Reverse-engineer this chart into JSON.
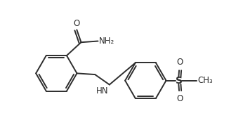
{
  "bg_color": "#ffffff",
  "line_color": "#2d2d2d",
  "line_width": 1.4,
  "font_size": 8.5,
  "figsize": [
    3.46,
    1.95
  ],
  "dpi": 100,
  "xlim": [
    0,
    10
  ],
  "ylim": [
    0,
    5.6
  ]
}
